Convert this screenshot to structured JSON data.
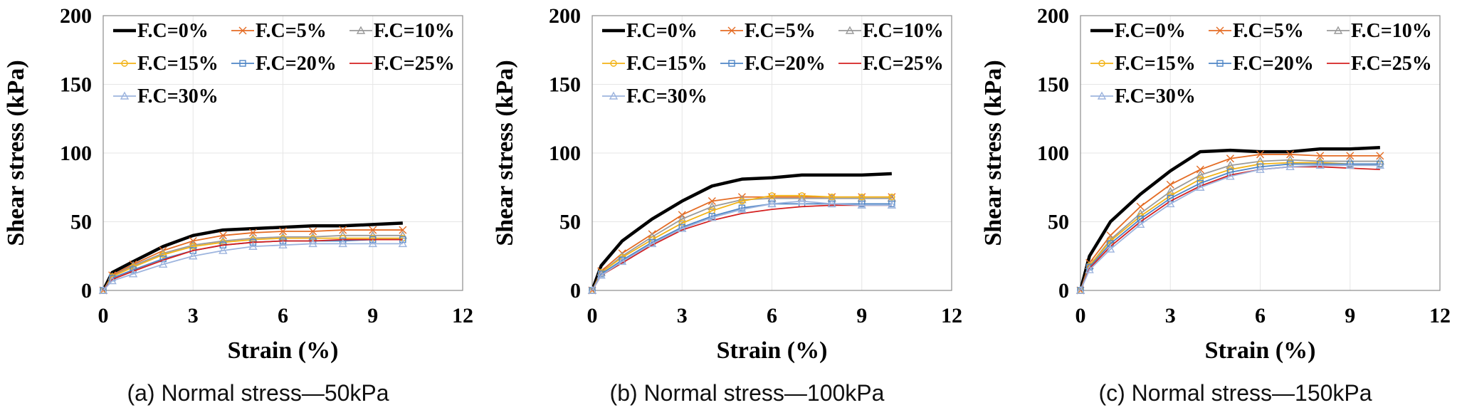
{
  "chart_data": [
    {
      "type": "line",
      "caption": "(a) Normal stress—50kPa",
      "xlabel": "Strain (%)",
      "ylabel": "Shear stress (kPa)",
      "xlim": [
        0,
        12
      ],
      "ylim": [
        0,
        200
      ],
      "xticks": [
        0,
        3,
        6,
        9,
        12
      ],
      "yticks": [
        0,
        50,
        100,
        150,
        200
      ],
      "series": [
        {
          "name": "F.C=0%",
          "color": "#000000",
          "x": [
            0,
            0.3,
            1,
            2,
            3,
            4,
            5,
            6,
            7,
            8,
            9,
            10
          ],
          "values": [
            0,
            13,
            21,
            32,
            40,
            44,
            45,
            46,
            47,
            47,
            48,
            49
          ]
        },
        {
          "name": "F.C=5%",
          "color": "#E46C24",
          "x": [
            0,
            0.3,
            1,
            2,
            3,
            4,
            5,
            6,
            7,
            8,
            9,
            10
          ],
          "values": [
            0,
            11,
            19,
            29,
            36,
            40,
            42,
            43,
            43,
            44,
            44,
            44
          ]
        },
        {
          "name": "F.C=10%",
          "color": "#9A9A9A",
          "x": [
            0,
            0.3,
            1,
            2,
            3,
            4,
            5,
            6,
            7,
            8,
            9,
            10
          ],
          "values": [
            0,
            10,
            18,
            27,
            33,
            36,
            38,
            39,
            39,
            40,
            40,
            40
          ]
        },
        {
          "name": "F.C=15%",
          "color": "#F2B316",
          "x": [
            0,
            0.3,
            1,
            2,
            3,
            4,
            5,
            6,
            7,
            8,
            9,
            10
          ],
          "values": [
            0,
            10,
            17,
            26,
            32,
            35,
            37,
            38,
            38,
            38,
            38,
            38
          ]
        },
        {
          "name": "F.C=20%",
          "color": "#4F86C6",
          "x": [
            0,
            0.3,
            1,
            2,
            3,
            4,
            5,
            6,
            7,
            8,
            9,
            10
          ],
          "values": [
            0,
            9,
            15,
            23,
            29,
            33,
            35,
            36,
            36,
            36,
            37,
            37
          ]
        },
        {
          "name": "F.C=25%",
          "color": "#D42020",
          "x": [
            0,
            0.3,
            1,
            2,
            3,
            4,
            5,
            6,
            7,
            8,
            9,
            10
          ],
          "values": [
            0,
            8,
            14,
            22,
            29,
            33,
            35,
            36,
            36,
            37,
            37,
            37
          ]
        },
        {
          "name": "F.C=30%",
          "color": "#9DB4DE",
          "x": [
            0,
            0.3,
            1,
            2,
            3,
            4,
            5,
            6,
            7,
            8,
            9,
            10
          ],
          "values": [
            0,
            7,
            12,
            19,
            25,
            29,
            32,
            33,
            34,
            34,
            34,
            34
          ]
        }
      ]
    },
    {
      "type": "line",
      "caption": "(b) Normal stress—100kPa",
      "xlabel": "Strain (%)",
      "ylabel": "Shear stress (kPa)",
      "xlim": [
        0,
        12
      ],
      "ylim": [
        0,
        200
      ],
      "xticks": [
        0,
        3,
        6,
        9,
        12
      ],
      "yticks": [
        0,
        50,
        100,
        150,
        200
      ],
      "series": [
        {
          "name": "F.C=0%",
          "color": "#000000",
          "x": [
            0,
            0.3,
            1,
            2,
            3,
            4,
            5,
            6,
            7,
            8,
            9,
            10
          ],
          "values": [
            0,
            18,
            36,
            52,
            65,
            76,
            81,
            82,
            84,
            84,
            84,
            85
          ]
        },
        {
          "name": "F.C=5%",
          "color": "#E46C24",
          "x": [
            0,
            0.3,
            1,
            2,
            3,
            4,
            5,
            6,
            7,
            8,
            9,
            10
          ],
          "values": [
            0,
            14,
            27,
            41,
            55,
            65,
            68,
            68,
            68,
            68,
            68,
            68
          ]
        },
        {
          "name": "F.C=10%",
          "color": "#9A9A9A",
          "x": [
            0,
            0.3,
            1,
            2,
            3,
            4,
            5,
            6,
            7,
            8,
            9,
            10
          ],
          "values": [
            0,
            13,
            25,
            39,
            52,
            61,
            66,
            67,
            67,
            67,
            67,
            67
          ]
        },
        {
          "name": "F.C=15%",
          "color": "#F2B316",
          "x": [
            0,
            0.3,
            1,
            2,
            3,
            4,
            5,
            6,
            7,
            8,
            9,
            10
          ],
          "values": [
            0,
            13,
            24,
            37,
            49,
            58,
            65,
            69,
            69,
            68,
            68,
            68
          ]
        },
        {
          "name": "F.C=20%",
          "color": "#4F86C6",
          "x": [
            0,
            0.3,
            1,
            2,
            3,
            4,
            5,
            6,
            7,
            8,
            9,
            10
          ],
          "values": [
            0,
            12,
            22,
            35,
            46,
            54,
            60,
            63,
            63,
            63,
            63,
            63
          ]
        },
        {
          "name": "F.C=25%",
          "color": "#D42020",
          "x": [
            0,
            0.3,
            1,
            2,
            3,
            4,
            5,
            6,
            7,
            8,
            9,
            10
          ],
          "values": [
            0,
            11,
            20,
            33,
            44,
            51,
            56,
            59,
            61,
            62,
            62,
            62
          ]
        },
        {
          "name": "F.C=30%",
          "color": "#9DB4DE",
          "x": [
            0,
            0.3,
            1,
            2,
            3,
            4,
            5,
            6,
            7,
            8,
            9,
            10
          ],
          "values": [
            0,
            11,
            21,
            34,
            45,
            53,
            59,
            63,
            65,
            63,
            62,
            62
          ]
        }
      ]
    },
    {
      "type": "line",
      "caption": "(c) Normal stress—150kPa",
      "xlabel": "Strain (%)",
      "ylabel": "Shear stress (kPa)",
      "xlim": [
        0,
        12
      ],
      "ylim": [
        0,
        200
      ],
      "xticks": [
        0,
        3,
        6,
        9,
        12
      ],
      "yticks": [
        0,
        50,
        100,
        150,
        200
      ],
      "series": [
        {
          "name": "F.C=0%",
          "color": "#000000",
          "x": [
            0,
            0.3,
            1,
            2,
            3,
            4,
            5,
            6,
            7,
            8,
            9,
            10
          ],
          "values": [
            0,
            25,
            50,
            70,
            87,
            101,
            102,
            101,
            101,
            103,
            103,
            104
          ]
        },
        {
          "name": "F.C=5%",
          "color": "#E46C24",
          "x": [
            0,
            0.3,
            1,
            2,
            3,
            4,
            5,
            6,
            7,
            8,
            9,
            10
          ],
          "values": [
            0,
            20,
            40,
            61,
            77,
            88,
            96,
            99,
            99,
            98,
            98,
            98
          ]
        },
        {
          "name": "F.C=10%",
          "color": "#9A9A9A",
          "x": [
            0,
            0.3,
            1,
            2,
            3,
            4,
            5,
            6,
            7,
            8,
            9,
            10
          ],
          "values": [
            0,
            18,
            37,
            56,
            72,
            84,
            91,
            94,
            95,
            94,
            94,
            94
          ]
        },
        {
          "name": "F.C=15%",
          "color": "#F2B316",
          "x": [
            0,
            0.3,
            1,
            2,
            3,
            4,
            5,
            6,
            7,
            8,
            9,
            10
          ],
          "values": [
            0,
            18,
            36,
            54,
            69,
            81,
            88,
            92,
            93,
            93,
            92,
            92
          ]
        },
        {
          "name": "F.C=20%",
          "color": "#4F86C6",
          "x": [
            0,
            0.3,
            1,
            2,
            3,
            4,
            5,
            6,
            7,
            8,
            9,
            10
          ],
          "values": [
            0,
            17,
            34,
            52,
            67,
            78,
            86,
            90,
            92,
            92,
            92,
            92
          ]
        },
        {
          "name": "F.C=25%",
          "color": "#D42020",
          "x": [
            0,
            0.3,
            1,
            2,
            3,
            4,
            5,
            6,
            7,
            8,
            9,
            10
          ],
          "values": [
            0,
            16,
            32,
            50,
            65,
            76,
            84,
            88,
            90,
            90,
            89,
            88
          ]
        },
        {
          "name": "F.C=30%",
          "color": "#9DB4DE",
          "x": [
            0,
            0.3,
            1,
            2,
            3,
            4,
            5,
            6,
            7,
            8,
            9,
            10
          ],
          "values": [
            0,
            15,
            30,
            48,
            63,
            75,
            83,
            88,
            90,
            91,
            91,
            91
          ]
        }
      ]
    }
  ]
}
